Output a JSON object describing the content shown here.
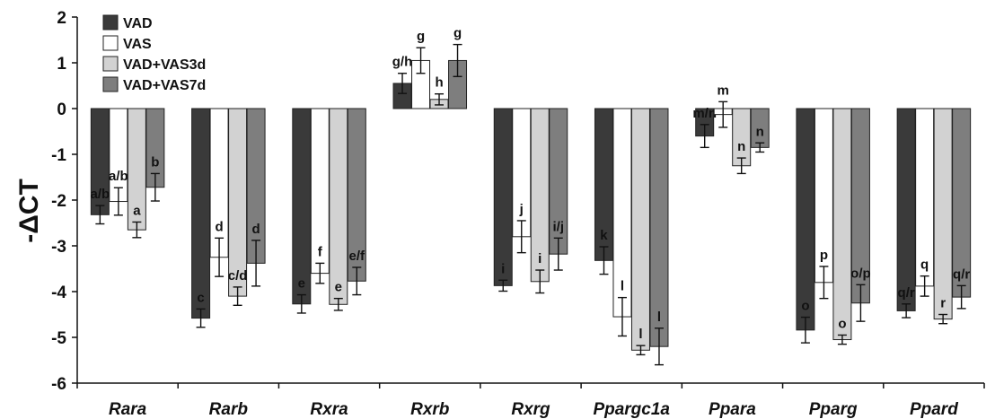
{
  "chart_data": {
    "type": "bar",
    "ylabel": "-ΔCT",
    "ylim": [
      -6,
      2
    ],
    "yticks": [
      2,
      1,
      0,
      -1,
      -2,
      -3,
      -4,
      -5,
      -6
    ],
    "grid": false,
    "legend_position": "top-left",
    "categories": [
      "Rara",
      "Rarb",
      "Rxra",
      "Rxrb",
      "Rxrg",
      "Ppargc1a",
      "Ppara",
      "Pparg",
      "Ppard"
    ],
    "series": [
      {
        "name": "VAD",
        "color": "#3a3a3a",
        "values": [
          -2.32,
          -4.58,
          -4.27,
          0.55,
          -3.87,
          -3.32,
          -0.6,
          -4.84,
          -4.42
        ],
        "errors": [
          0.2,
          0.2,
          0.2,
          0.22,
          0.12,
          0.3,
          0.25,
          0.28,
          0.15
        ],
        "labels": [
          "a/b",
          "c",
          "e",
          "g/h",
          "i",
          "k",
          "m/n",
          "o",
          "q/r"
        ]
      },
      {
        "name": "VAS",
        "color": "#ffffff",
        "values": [
          -2.03,
          -3.25,
          -3.6,
          1.05,
          -2.8,
          -4.55,
          -0.13,
          -3.8,
          -3.88
        ],
        "errors": [
          0.3,
          0.42,
          0.22,
          0.28,
          0.35,
          0.42,
          0.28,
          0.35,
          0.22
        ],
        "labels": [
          "a/b",
          "d",
          "f",
          "g",
          "j",
          "l",
          "m",
          "p",
          "q"
        ]
      },
      {
        "name": "VAD+VAS3d",
        "color": "#d2d2d2",
        "values": [
          -2.65,
          -4.1,
          -4.28,
          0.2,
          -3.78,
          -5.28,
          -1.25,
          -5.05,
          -4.6
        ],
        "errors": [
          0.17,
          0.2,
          0.13,
          0.12,
          0.25,
          0.1,
          0.17,
          0.1,
          0.1
        ],
        "labels": [
          "a",
          "c/d",
          "e",
          "h",
          "i",
          "l",
          "n",
          "o",
          "r"
        ]
      },
      {
        "name": "VAD+VAS7d",
        "color": "#7e7e7e",
        "values": [
          -1.72,
          -3.38,
          -3.77,
          1.05,
          -3.18,
          -5.2,
          -0.85,
          -4.25,
          -4.12
        ],
        "errors": [
          0.3,
          0.5,
          0.3,
          0.35,
          0.35,
          0.4,
          0.1,
          0.4,
          0.25
        ],
        "labels": [
          "b",
          "d",
          "e/f",
          "g",
          "i/j",
          "l",
          "n",
          "o/p",
          "q/r"
        ]
      }
    ]
  }
}
